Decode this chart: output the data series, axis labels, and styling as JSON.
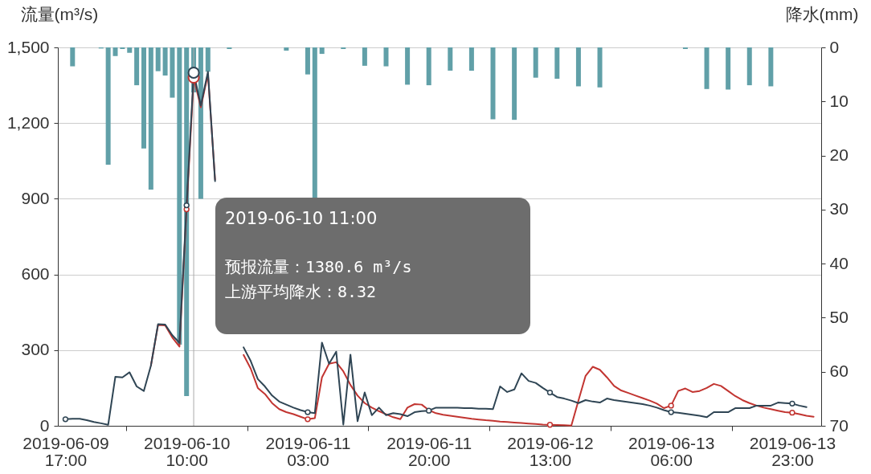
{
  "chart_data": {
    "type": "line",
    "ylabel": "流量(m³/s)",
    "y2label": "降水(mm)",
    "xlim": [
      "2019-06-09T16:30",
      "2019-06-14T02:30"
    ],
    "xticks": [
      {
        "value": "2019-06-09T17:00",
        "label": "2019-06-09\n17:00"
      },
      {
        "value": "2019-06-10T01:30",
        "label": null
      },
      {
        "value": "2019-06-10T10:00",
        "label": "2019-06-10\n10:00"
      },
      {
        "value": "2019-06-10T18:30",
        "label": null
      },
      {
        "value": "2019-06-11T03:00",
        "label": "2019-06-11\n03:00"
      },
      {
        "value": "2019-06-11T11:30",
        "label": null
      },
      {
        "value": "2019-06-11T20:00",
        "label": "2019-06-11\n20:00"
      },
      {
        "value": "2019-06-12T04:30",
        "label": null
      },
      {
        "value": "2019-06-12T13:00",
        "label": "2019-06-12\n13:00"
      },
      {
        "value": "2019-06-12T21:30",
        "label": null
      },
      {
        "value": "2019-06-13T06:00",
        "label": "2019-06-13\n06:00"
      },
      {
        "value": "2019-06-13T14:30",
        "label": null
      },
      {
        "value": "2019-06-13T23:00",
        "label": "2019-06-13\n23:00"
      }
    ],
    "ylim": [
      0,
      1500
    ],
    "yticks": [
      0,
      300,
      600,
      900,
      {
        "value": 1200,
        "label": "1,200"
      },
      {
        "value": 1500,
        "label": "1,500"
      }
    ],
    "y2lim": [
      70,
      0
    ],
    "y2ticks": [
      0,
      10,
      20,
      30,
      40,
      50,
      60,
      70
    ],
    "grid": "y",
    "ref_lines": [
      {
        "axis": "x",
        "value": "2019-06-10T11:00",
        "color": "#aaaaaa"
      }
    ],
    "annotations": [
      "2019-06-10 11:00",
      "预报流量：1380.6 m³/s",
      "上游平均降水：8.32"
    ],
    "x": [
      "2019-06-09T17:00",
      "2019-06-09T18:00",
      "2019-06-09T19:00",
      "2019-06-09T20:00",
      "2019-06-09T21:00",
      "2019-06-09T22:00",
      "2019-06-09T23:00",
      "2019-06-10T00:00",
      "2019-06-10T01:00",
      "2019-06-10T02:00",
      "2019-06-10T03:00",
      "2019-06-10T04:00",
      "2019-06-10T05:00",
      "2019-06-10T06:00",
      "2019-06-10T07:00",
      "2019-06-10T08:00",
      "2019-06-10T09:00",
      "2019-06-10T10:00",
      "2019-06-10T11:00",
      "2019-06-10T12:00",
      "2019-06-10T13:00",
      "2019-06-10T14:00",
      "2019-06-10T15:00",
      "2019-06-10T16:00",
      "2019-06-10T17:00",
      "2019-06-10T18:00",
      "2019-06-10T19:00",
      "2019-06-10T20:00",
      "2019-06-10T21:00",
      "2019-06-10T22:00",
      "2019-06-10T23:00",
      "2019-06-11T00:00",
      "2019-06-11T01:00",
      "2019-06-11T02:00",
      "2019-06-11T03:00",
      "2019-06-11T04:00",
      "2019-06-11T05:00",
      "2019-06-11T06:00",
      "2019-06-11T07:00",
      "2019-06-11T08:00",
      "2019-06-11T09:00",
      "2019-06-11T10:00",
      "2019-06-11T11:00",
      "2019-06-11T12:00",
      "2019-06-11T13:00",
      "2019-06-11T14:00",
      "2019-06-11T15:00",
      "2019-06-11T16:00",
      "2019-06-11T17:00",
      "2019-06-11T18:00",
      "2019-06-11T19:00",
      "2019-06-11T20:00",
      "2019-06-11T21:00",
      "2019-06-11T22:00",
      "2019-06-11T23:00",
      "2019-06-12T00:00",
      "2019-06-12T01:00",
      "2019-06-12T02:00",
      "2019-06-12T03:00",
      "2019-06-12T04:00",
      "2019-06-12T05:00",
      "2019-06-12T06:00",
      "2019-06-12T07:00",
      "2019-06-12T08:00",
      "2019-06-12T09:00",
      "2019-06-12T10:00",
      "2019-06-12T11:00",
      "2019-06-12T12:00",
      "2019-06-12T13:00",
      "2019-06-12T14:00",
      "2019-06-12T15:00",
      "2019-06-12T16:00",
      "2019-06-12T17:00",
      "2019-06-12T18:00",
      "2019-06-12T19:00",
      "2019-06-12T20:00",
      "2019-06-12T21:00",
      "2019-06-12T22:00",
      "2019-06-12T23:00",
      "2019-06-13T00:00",
      "2019-06-13T01:00",
      "2019-06-13T02:00",
      "2019-06-13T03:00",
      "2019-06-13T04:00",
      "2019-06-13T05:00",
      "2019-06-13T06:00",
      "2019-06-13T07:00",
      "2019-06-13T08:00",
      "2019-06-13T09:00",
      "2019-06-13T10:00",
      "2019-06-13T11:00",
      "2019-06-13T12:00",
      "2019-06-13T13:00",
      "2019-06-13T14:00",
      "2019-06-13T15:00",
      "2019-06-13T16:00",
      "2019-06-13T17:00",
      "2019-06-13T18:00",
      "2019-06-13T19:00",
      "2019-06-13T20:00",
      "2019-06-13T21:00",
      "2019-06-13T22:00",
      "2019-06-13T23:00",
      "2019-06-14T00:00",
      "2019-06-14T01:00",
      "2019-06-14T02:00"
    ],
    "series": [
      {
        "type": "bar",
        "axis": "y2",
        "color": "#61a0a8",
        "x": [
          "2019-06-09T18:00",
          "2019-06-09T22:00",
          "2019-06-09T23:00",
          "2019-06-10T00:00",
          "2019-06-10T01:00",
          "2019-06-10T02:00",
          "2019-06-10T03:00",
          "2019-06-10T04:00",
          "2019-06-10T05:00",
          "2019-06-10T06:00",
          "2019-06-10T07:00",
          "2019-06-10T08:00",
          "2019-06-10T09:00",
          "2019-06-10T10:00",
          "2019-06-10T11:00",
          "2019-06-10T12:00",
          "2019-06-10T13:00",
          "2019-06-10T16:00",
          "2019-06-11T00:00",
          "2019-06-11T03:00",
          "2019-06-11T04:00",
          "2019-06-11T05:00",
          "2019-06-11T08:00",
          "2019-06-11T11:00",
          "2019-06-11T14:00",
          "2019-06-11T17:00",
          "2019-06-11T20:00",
          "2019-06-11T23:00",
          "2019-06-12T02:00",
          "2019-06-12T05:00",
          "2019-06-12T08:00",
          "2019-06-12T11:00",
          "2019-06-12T14:00",
          "2019-06-12T17:00",
          "2019-06-12T20:00",
          "2019-06-13T08:00",
          "2019-06-13T11:00",
          "2019-06-13T14:00",
          "2019-06-13T17:00",
          "2019-06-13T20:00"
        ],
        "values": [
          3.5,
          0.2,
          21.7,
          1.6,
          0.3,
          1.0,
          7.0,
          18.7,
          26.3,
          4.4,
          5.2,
          9.3,
          55,
          64.5,
          8.32,
          28,
          4.5,
          0.3,
          0.6,
          5.0,
          28,
          1.2,
          0.3,
          3.4,
          3.5,
          6.9,
          7.0,
          4.3,
          4.3,
          13.3,
          13.4,
          5.6,
          5.8,
          7.2,
          7.4,
          0.3,
          7.7,
          7.8,
          7.0,
          7.2
        ]
      },
      {
        "color": "#c23531",
        "values": [
          null,
          null,
          null,
          null,
          null,
          null,
          null,
          null,
          null,
          null,
          null,
          null,
          239,
          400,
          398,
          350,
          314,
          858,
          1380.6,
          1263,
          1394,
          976,
          null,
          null,
          null,
          281,
          227,
          150,
          126,
          90,
          66,
          54,
          46,
          36,
          26,
          30,
          192,
          246,
          252,
          216,
          162,
          120,
          90,
          72,
          58,
          46,
          34,
          26,
          72,
          86,
          84,
          62,
          50,
          44,
          40,
          36,
          32,
          28,
          25,
          22,
          20,
          17,
          15,
          13,
          11,
          9,
          7,
          5,
          4,
          3,
          2,
          1,
          100,
          198,
          234,
          222,
          192,
          158,
          140,
          130,
          120,
          110,
          100,
          88,
          70,
          80,
          138,
          148,
          134,
          138,
          150,
          166,
          158,
          138,
          118,
          102,
          90,
          80,
          72,
          66,
          60,
          54,
          52,
          46,
          40,
          36
        ]
      },
      {
        "color": "#2f4554",
        "values": [
          26,
          28,
          28,
          22,
          15,
          10,
          4,
          194,
          192,
          212,
          156,
          138,
          239,
          403,
          401,
          359,
          329,
          874,
          1400,
          1269,
          1404,
          970,
          null,
          null,
          null,
          311,
          257,
          185,
          156,
          120,
          96,
          84,
          72,
          62,
          54,
          50,
          330,
          246,
          294,
          5,
          282,
          18,
          132,
          42,
          72,
          42,
          50,
          46,
          38,
          54,
          58,
          60,
          72,
          72,
          72,
          72,
          70,
          70,
          68,
          68,
          66,
          156,
          134,
          144,
          208,
          178,
          170,
          150,
          132,
          114,
          108,
          100,
          90,
          102,
          96,
          92,
          108,
          102,
          98,
          94,
          90,
          86,
          80,
          72,
          62,
          54,
          52,
          48,
          44,
          40,
          34,
          54,
          54,
          54,
          70,
          70,
          70,
          80,
          80,
          80,
          92,
          90,
          88,
          80,
          74,
          null
        ]
      },
      {
        "type": "scatter",
        "marker": "circle",
        "color": "#c23531",
        "x": [
          "2019-06-10T10:00",
          "2019-06-10T11:00",
          "2019-06-11T03:00",
          "2019-06-12T13:00",
          "2019-06-13T06:00",
          "2019-06-13T23:00"
        ],
        "values": [
          858,
          1380.6,
          26,
          4,
          80,
          52
        ]
      },
      {
        "type": "scatter",
        "marker": "circle",
        "color": "#2f4554",
        "x": [
          "2019-06-09T17:00",
          "2019-06-10T10:00",
          "2019-06-10T11:00",
          "2019-06-11T03:00",
          "2019-06-11T20:00",
          "2019-06-12T13:00",
          "2019-06-13T06:00",
          "2019-06-13T23:00"
        ],
        "values": [
          26,
          874,
          1400,
          54,
          60,
          132,
          54,
          88
        ]
      }
    ]
  }
}
